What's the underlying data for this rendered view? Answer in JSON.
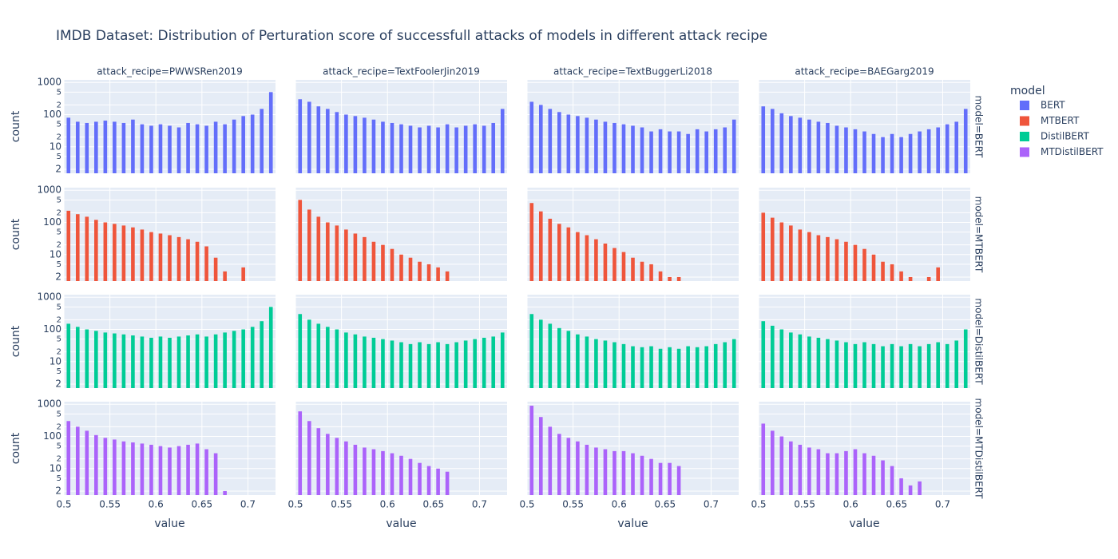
{
  "chart_data": {
    "type": "histogram",
    "title": "IMDB Dataset: Distribution of Perturation score of successfull attacks of models in different attack recipe",
    "x_label": "value",
    "y_label": "count",
    "legend_title": "model",
    "legend": "right",
    "columns": [
      "attack_recipe=PWWSRen2019",
      "attack_recipe=TextFoolerJin2019",
      "attack_recipe=TextBuggerLi2018",
      "attack_recipe=BAEGarg2019"
    ],
    "rows": [
      "model=BERT",
      "model=MTBERT",
      "model=DistilBERT",
      "model=MTDistilBERT"
    ],
    "bins": [
      0.5,
      0.51,
      0.52,
      0.53,
      0.54,
      0.55,
      0.56,
      0.57,
      0.58,
      0.59,
      0.6,
      0.61,
      0.62,
      0.63,
      0.64,
      0.65,
      0.66,
      0.67,
      0.68,
      0.69,
      0.7,
      0.71,
      0.72,
      0.73
    ],
    "xlim": [
      0.5,
      0.73
    ],
    "xticks": [
      0.5,
      0.55,
      0.6,
      0.65,
      0.7
    ],
    "yscale": "log",
    "ylim": [
      1.5,
      1200
    ],
    "yticks": [
      2,
      {
        "value": 5,
        "label": "5"
      },
      10,
      {
        "value": 20,
        "label": "2"
      },
      {
        "value": 50,
        "label": "5"
      },
      100,
      {
        "value": 200,
        "label": "2"
      },
      {
        "value": 500,
        "label": "5"
      },
      1000
    ],
    "grid": true,
    "series": [
      {
        "name": "BERT",
        "color": "#636efa",
        "values": [
          [
            80,
            60,
            55,
            60,
            65,
            60,
            55,
            70,
            50,
            45,
            50,
            45,
            40,
            55,
            50,
            45,
            60,
            50,
            70,
            90,
            100,
            150,
            500
          ],
          [
            300,
            250,
            180,
            150,
            120,
            100,
            90,
            80,
            70,
            60,
            55,
            50,
            45,
            40,
            45,
            40,
            50,
            40,
            45,
            50,
            45,
            55,
            150
          ],
          [
            250,
            200,
            150,
            120,
            100,
            90,
            80,
            70,
            60,
            55,
            50,
            45,
            40,
            30,
            35,
            30,
            30,
            25,
            35,
            30,
            35,
            40,
            70
          ],
          [
            180,
            150,
            110,
            90,
            80,
            70,
            60,
            55,
            45,
            40,
            35,
            30,
            25,
            20,
            25,
            20,
            25,
            30,
            35,
            40,
            50,
            60,
            150
          ]
        ]
      },
      {
        "name": "MTBERT",
        "color": "#ef553b",
        "values": [
          [
            230,
            180,
            150,
            120,
            100,
            90,
            80,
            70,
            60,
            50,
            45,
            40,
            35,
            30,
            25,
            18,
            8,
            3,
            0,
            4,
            0,
            0,
            0
          ],
          [
            500,
            250,
            150,
            100,
            80,
            60,
            45,
            35,
            25,
            20,
            15,
            10,
            8,
            6,
            5,
            4,
            3,
            0,
            0,
            0,
            0,
            0,
            0
          ],
          [
            400,
            220,
            130,
            90,
            70,
            50,
            40,
            30,
            22,
            16,
            12,
            8,
            6,
            5,
            3,
            2,
            2,
            0,
            0,
            0,
            0,
            0,
            0
          ],
          [
            200,
            140,
            100,
            80,
            60,
            50,
            40,
            35,
            30,
            25,
            20,
            15,
            10,
            6,
            5,
            3,
            2,
            0,
            2,
            4,
            0,
            0,
            0
          ]
        ]
      },
      {
        "name": "DistilBERT",
        "color": "#00cc96",
        "values": [
          [
            150,
            120,
            100,
            90,
            80,
            75,
            70,
            65,
            60,
            55,
            60,
            55,
            60,
            65,
            70,
            60,
            70,
            80,
            90,
            100,
            120,
            180,
            500
          ],
          [
            300,
            200,
            150,
            120,
            100,
            80,
            70,
            60,
            55,
            50,
            45,
            40,
            35,
            40,
            35,
            40,
            35,
            40,
            45,
            50,
            55,
            60,
            80
          ],
          [
            300,
            200,
            150,
            110,
            90,
            70,
            60,
            50,
            45,
            40,
            35,
            30,
            28,
            30,
            25,
            28,
            25,
            30,
            28,
            30,
            35,
            40,
            50
          ],
          [
            180,
            130,
            100,
            80,
            70,
            60,
            55,
            50,
            45,
            40,
            35,
            40,
            35,
            30,
            35,
            30,
            35,
            30,
            35,
            40,
            35,
            45,
            100
          ]
        ]
      },
      {
        "name": "MTDistilBERT",
        "color": "#ab63fa",
        "values": [
          [
            300,
            200,
            150,
            110,
            90,
            80,
            70,
            65,
            60,
            55,
            50,
            45,
            50,
            55,
            60,
            40,
            30,
            2,
            0,
            0,
            0,
            0,
            0
          ],
          [
            600,
            300,
            180,
            120,
            90,
            70,
            55,
            45,
            40,
            35,
            30,
            25,
            20,
            15,
            12,
            10,
            8,
            0,
            0,
            0,
            0,
            0,
            0
          ],
          [
            900,
            400,
            200,
            120,
            90,
            70,
            55,
            45,
            40,
            35,
            35,
            30,
            25,
            20,
            15,
            15,
            12,
            0,
            0,
            0,
            0,
            0,
            0
          ],
          [
            250,
            150,
            100,
            70,
            55,
            45,
            40,
            30,
            30,
            35,
            40,
            30,
            25,
            18,
            12,
            5,
            3,
            4,
            0,
            0,
            0,
            0,
            0
          ]
        ]
      }
    ]
  }
}
